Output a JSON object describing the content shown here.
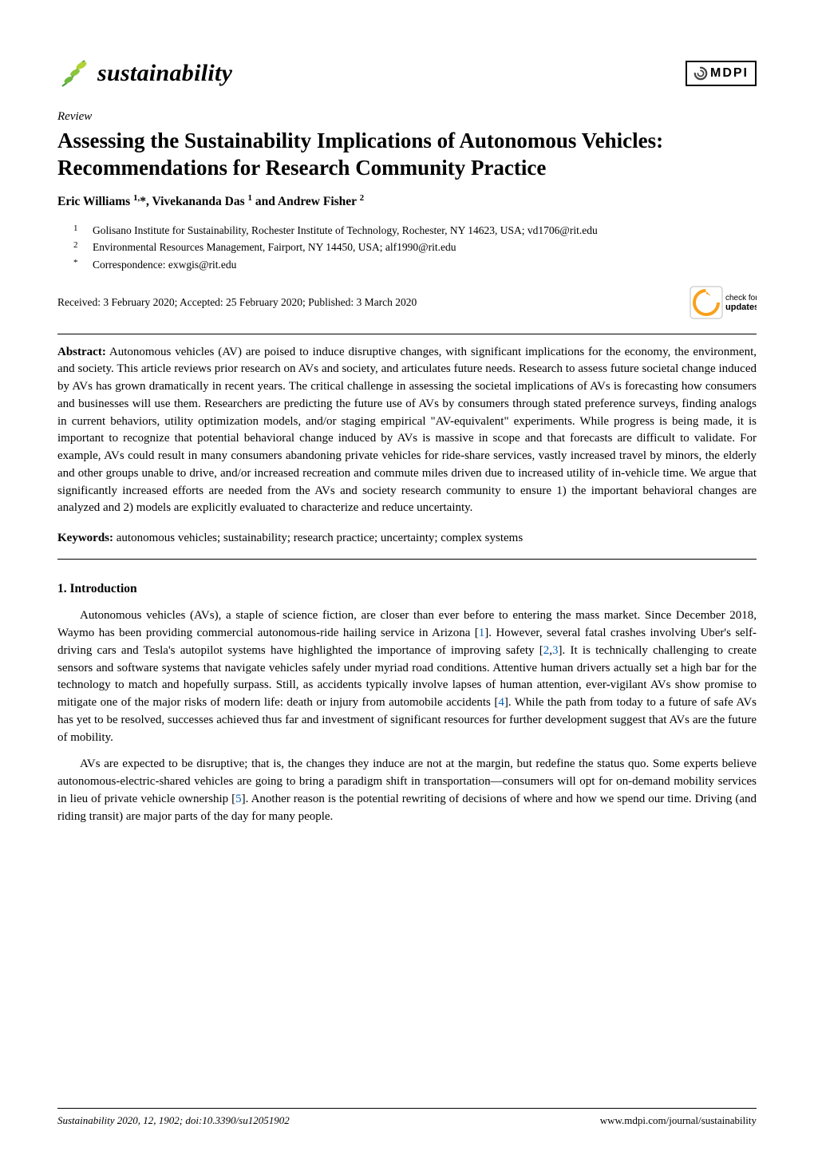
{
  "journal": {
    "name": "sustainability",
    "leaf_colors": {
      "vine": "#4aa03a",
      "leaf1": "#6fb83e",
      "leaf2": "#8bc53f",
      "leaf3": "#b2d235"
    }
  },
  "publisher": {
    "name": "MDPI",
    "swirl_color": "#444444"
  },
  "article_type": "Review",
  "title": "Assessing the Sustainability Implications of Autonomous Vehicles: Recommendations for Research Community Practice",
  "authors_html": "Eric Williams <sup>1,</sup>*, Vivekananda Das <sup>1</sup> and Andrew Fisher <sup>2</sup>",
  "affiliations": [
    {
      "sup": "1",
      "text": "Golisano Institute for Sustainability, Rochester Institute of Technology, Rochester, NY 14623, USA; vd1706@rit.edu"
    },
    {
      "sup": "2",
      "text": "Environmental Resources Management, Fairport, NY 14450, USA; alf1990@rit.edu"
    },
    {
      "sup": "*",
      "text": "Correspondence: exwgis@rit.edu"
    }
  ],
  "dates": "Received: 3 February 2020; Accepted: 25 February 2020; Published: 3 March 2020",
  "check_updates": {
    "label_top": "check for",
    "label_bottom": "updates",
    "arrow_color": "#f9a11b",
    "bg_color": "#ffffff",
    "border_color": "#bdbdbd"
  },
  "abstract_label": "Abstract:",
  "abstract_text": " Autonomous vehicles (AV) are poised to induce disruptive changes, with significant implications for the economy, the environment, and society. This article reviews prior research on AVs and society, and articulates future needs. Research to assess future societal change induced by AVs has grown dramatically in recent years. The critical challenge in assessing the societal implications of AVs is forecasting how consumers and businesses will use them. Researchers are predicting the future use of AVs by consumers through stated preference surveys, finding analogs in current behaviors, utility optimization models, and/or staging empirical \"AV-equivalent\" experiments. While progress is being made, it is important to recognize that potential behavioral change induced by AVs is massive in scope and that forecasts are difficult to validate. For example, AVs could result in many consumers abandoning private vehicles for ride-share services, vastly increased travel by minors, the elderly and other groups unable to drive, and/or increased recreation and commute miles driven due to increased utility of in-vehicle time. We argue that significantly increased efforts are needed from the AVs and society research community to ensure 1) the important behavioral changes are analyzed and 2) models are explicitly evaluated to characterize and reduce uncertainty.",
  "keywords_label": "Keywords:",
  "keywords_text": " autonomous vehicles; sustainability; research practice; uncertainty; complex systems",
  "section1_heading": "1. Introduction",
  "body": {
    "p1_a": "Autonomous vehicles (AVs), a staple of science fiction, are closer than ever before to entering the mass market. Since December 2018, Waymo has been providing commercial autonomous-ride hailing service in Arizona [",
    "p1_r1": "1",
    "p1_b": "]. However, several fatal crashes involving Uber's self-driving cars and Tesla's autopilot systems have highlighted the importance of improving safety [",
    "p1_r2": "2",
    "p1_c": ",",
    "p1_r3": "3",
    "p1_d": "]. It is technically challenging to create sensors and software systems that navigate vehicles safely under myriad road conditions. Attentive human drivers actually set a high bar for the technology to match and hopefully surpass. Still, as accidents typically involve lapses of human attention, ever-vigilant AVs show promise to mitigate one of the major risks of modern life: death or injury from automobile accidents [",
    "p1_r4": "4",
    "p1_e": "]. While the path from today to a future of safe AVs has yet to be resolved, successes achieved thus far and investment of significant resources for further development suggest that AVs are the future of mobility.",
    "p2_a": "AVs are expected to be disruptive; that is, the changes they induce are not at the margin, but redefine the status quo. Some experts believe autonomous-electric-shared vehicles are going to bring a paradigm shift in transportation—consumers will opt for on-demand mobility services in lieu of private vehicle ownership [",
    "p2_r5": "5",
    "p2_b": "]. Another reason is the potential rewriting of decisions of where and how we spend our time. Driving (and riding transit) are major parts of the day for many people."
  },
  "footer": {
    "left": "Sustainability 2020, 12, 1902; doi:10.3390/su12051902",
    "right": "www.mdpi.com/journal/sustainability"
  }
}
